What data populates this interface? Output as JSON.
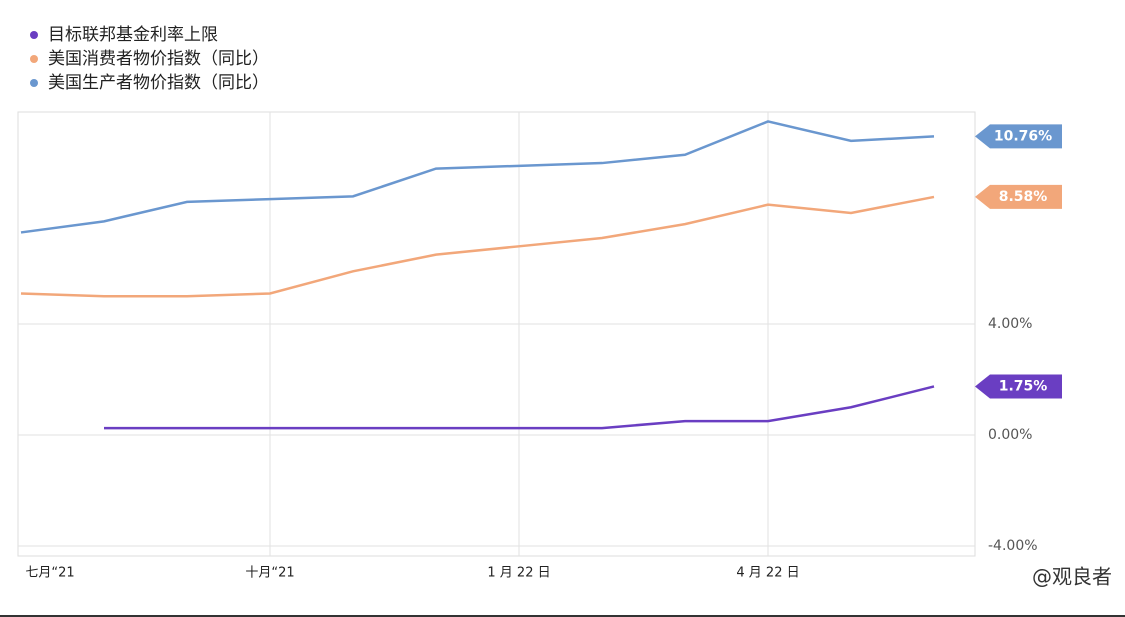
{
  "chart_data": {
    "type": "line",
    "categories": [
      "七月“21",
      null,
      null,
      "十月“21",
      null,
      null,
      "1 月 22 日",
      null,
      null,
      "4 月 22 日",
      null,
      null
    ],
    "series": [
      {
        "name": "目标联邦基金利率上限",
        "color": "#6a3ec2",
        "values": [
          null,
          0.25,
          0.25,
          0.25,
          0.25,
          0.25,
          0.25,
          0.25,
          0.5,
          0.5,
          1.0,
          1.75
        ],
        "value_labels": [
          null,
          null,
          null,
          null,
          null,
          null,
          null,
          null,
          null,
          null,
          null,
          "1.75%"
        ]
      },
      {
        "name": "美国消费者物价指数（同比）",
        "color": "#f2a77a",
        "values": [
          5.1,
          5.0,
          5.0,
          5.1,
          5.9,
          6.5,
          6.8,
          7.1,
          7.6,
          8.3,
          8.0,
          8.58
        ],
        "value_labels": [
          null,
          null,
          null,
          null,
          null,
          null,
          null,
          null,
          null,
          null,
          null,
          "8.58%"
        ]
      },
      {
        "name": "美国生产者物价指数（同比）",
        "color": "#6a97cf",
        "values": [
          7.3,
          7.7,
          8.4,
          8.5,
          8.6,
          9.6,
          9.7,
          9.8,
          10.1,
          11.3,
          10.6,
          10.76
        ],
        "value_labels": [
          null,
          null,
          null,
          null,
          null,
          null,
          null,
          null,
          null,
          null,
          null,
          "10.76%"
        ]
      }
    ],
    "ylim": [
      -4.36,
      11.64
    ],
    "yticks": [
      {
        "value": -4,
        "label": "-4.00%"
      },
      {
        "value": 0,
        "label": "0.00%"
      },
      {
        "value": 4,
        "label": "4.00%"
      }
    ],
    "grid": true,
    "watermark": "@观良者"
  }
}
